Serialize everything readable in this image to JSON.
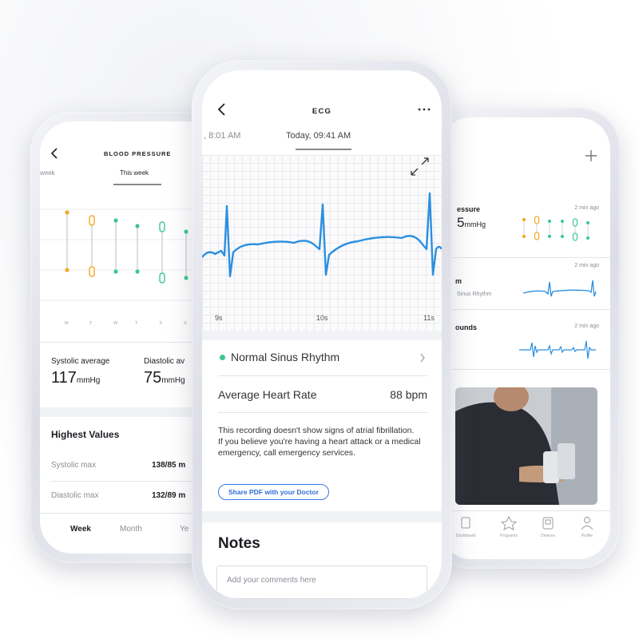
{
  "left_screen": {
    "title": "BLOOD PRESSURE",
    "tabs": [
      "week",
      "This week"
    ],
    "days": [
      "M",
      "T",
      "W",
      "T",
      "F",
      "S"
    ],
    "systolic": {
      "label": "Systolic average",
      "value": "117",
      "unit": "mmHg"
    },
    "diastolic": {
      "label": "Diastolic av",
      "value": "75",
      "unit": "mmHg"
    },
    "highest": {
      "title": "Highest Values",
      "rows": [
        [
          "Systolic max",
          "138/85 m"
        ],
        [
          "Diastolic max",
          "132/89 m"
        ]
      ]
    },
    "bottom_tabs": [
      "Week",
      "Month",
      "Ye"
    ]
  },
  "center_screen": {
    "title": "ECG",
    "tabs": [
      ", 8:01 AM",
      "Today, 09:41 AM"
    ],
    "time_labels": [
      "9s",
      "10s",
      "11s"
    ],
    "rhythm": "Normal Sinus Rhythm",
    "heart_rate": {
      "label": "Average Heart Rate",
      "value": "88 bpm"
    },
    "message": [
      "This recording doesn't show signs of atrial fibrillation.",
      "If you believe you're having a heart attack or a medical emergency, call emergency services."
    ],
    "button": "Share PDF with your Doctor",
    "notes": {
      "title": "Notes",
      "placeholder": "Add your comments here"
    }
  },
  "right_screen": {
    "cards": [
      {
        "title": "essure",
        "value": "5",
        "unit": "mmHg",
        "time": "2 min ago"
      },
      {
        "title": "m",
        "subtitle": "Sinus Rhythm",
        "time": "2 min ago"
      },
      {
        "title": "ounds",
        "time": "2 min ago"
      }
    ],
    "nav": [
      "Dashboard",
      "Programs",
      "Devices",
      "Profile"
    ]
  }
}
